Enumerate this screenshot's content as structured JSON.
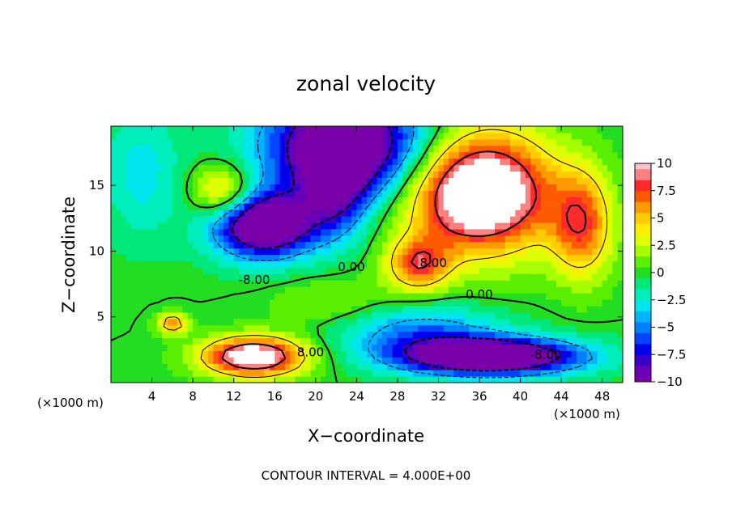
{
  "chart_data": {
    "type": "heatmap",
    "title": "zonal velocity",
    "xlabel": "X−coordinate",
    "ylabel": "Z−coordinate",
    "x_unit": "(×1000 m)",
    "x_unit_right": "(×1000 m)",
    "xlim": [
      0,
      50
    ],
    "ylim": [
      0,
      19.5
    ],
    "x_ticks": [
      4,
      8,
      12,
      16,
      20,
      24,
      28,
      32,
      36,
      40,
      44,
      48
    ],
    "y_ticks": [
      5,
      10,
      15
    ],
    "colorbar": {
      "ticks": [
        10,
        7.5,
        5,
        2.5,
        0,
        -2.5,
        -5,
        -7.5,
        -10
      ],
      "tick_labels": [
        "10",
        "7.5",
        "5",
        "2.5",
        "0",
        "−2.5",
        "−5",
        "−7.5",
        "−10"
      ],
      "range": [
        -10,
        10
      ],
      "levels": [
        {
          "value": 10,
          "color": "#ffc0cb"
        },
        {
          "value": 9,
          "color": "#ff8080"
        },
        {
          "value": 8,
          "color": "#ff2a2a"
        },
        {
          "value": 7,
          "color": "#ff5a00"
        },
        {
          "value": 6,
          "color": "#ff9a00"
        },
        {
          "value": 5,
          "color": "#ffcc00"
        },
        {
          "value": 4,
          "color": "#ffee00"
        },
        {
          "value": 3,
          "color": "#ddff00"
        },
        {
          "value": 2,
          "color": "#a6ff00"
        },
        {
          "value": 1,
          "color": "#5aee00"
        },
        {
          "value": 0,
          "color": "#22dd22"
        },
        {
          "value": -1,
          "color": "#00e87a"
        },
        {
          "value": -2,
          "color": "#00eebb"
        },
        {
          "value": -3,
          "color": "#00e5ee"
        },
        {
          "value": -4,
          "color": "#00b4ff"
        },
        {
          "value": -5,
          "color": "#0080ff"
        },
        {
          "value": -6,
          "color": "#0044ff"
        },
        {
          "value": -7,
          "color": "#0000ee"
        },
        {
          "value": -8,
          "color": "#3a00c8"
        },
        {
          "value": -9,
          "color": "#6a00b8"
        },
        {
          "value": -10,
          "color": "#7a00a8"
        }
      ]
    },
    "contour_labels": [
      {
        "text": "-8.00",
        "x": 14,
        "z": 7.5
      },
      {
        "text": "0.00",
        "x": 23.5,
        "z": 8.5
      },
      {
        "text": "8.00",
        "x": 31.5,
        "z": 8.8
      },
      {
        "text": "0.00",
        "x": 36,
        "z": 6.4
      },
      {
        "text": "8.00",
        "x": 19.5,
        "z": 2.0
      },
      {
        "text": "-8.00",
        "x": 42.5,
        "z": 1.8
      }
    ],
    "contour_interval_text": "CONTOUR INTERVAL = 4.000E+00",
    "grid": false,
    "legend": "right colorbar"
  }
}
